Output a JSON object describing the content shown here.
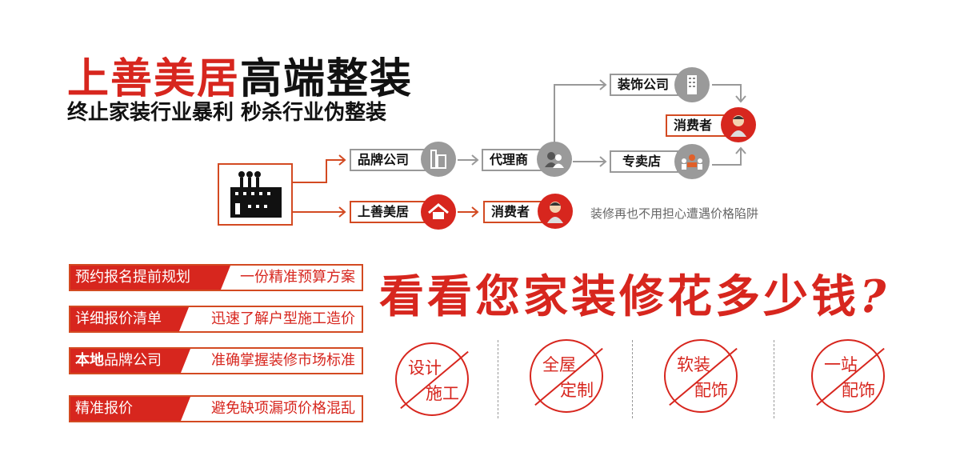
{
  "header": {
    "brand": "上善美居",
    "title_rest": "高端整装",
    "subtitle": "终止家装行业暴利  秒杀行业伪整装"
  },
  "flow": {
    "traditional": {
      "brand_company": "品牌公司",
      "agent": "代理商",
      "decoration_company": "装饰公司",
      "store": "专卖店",
      "consumer": "消费者"
    },
    "direct": {
      "brand": "上善美居",
      "consumer": "消费者"
    },
    "note": "装修再也不用担心遭遇价格陷阱"
  },
  "features": [
    {
      "left": "预约报名提前规划",
      "right": "一份精准预算方案"
    },
    {
      "left": "详细报价清单",
      "right": "迅速了解户型施工造价"
    },
    {
      "left_bold": "本地",
      "left": "品牌公司",
      "right": "准确掌握装修市场标准"
    },
    {
      "left": "精准报价",
      "right": "避免缺项漏项价格混乱"
    }
  ],
  "slogan": "看看您家装修花多少钱",
  "slogan_mark": "?",
  "stamps": [
    {
      "top": "设计",
      "bottom": "施工"
    },
    {
      "top": "全屋",
      "bottom": "定制"
    },
    {
      "top": "软装",
      "bottom": "配饰"
    },
    {
      "top": "一站",
      "bottom": "配饰"
    }
  ],
  "colors": {
    "accent": "#d7261e",
    "grey": "#9a9a9a"
  }
}
